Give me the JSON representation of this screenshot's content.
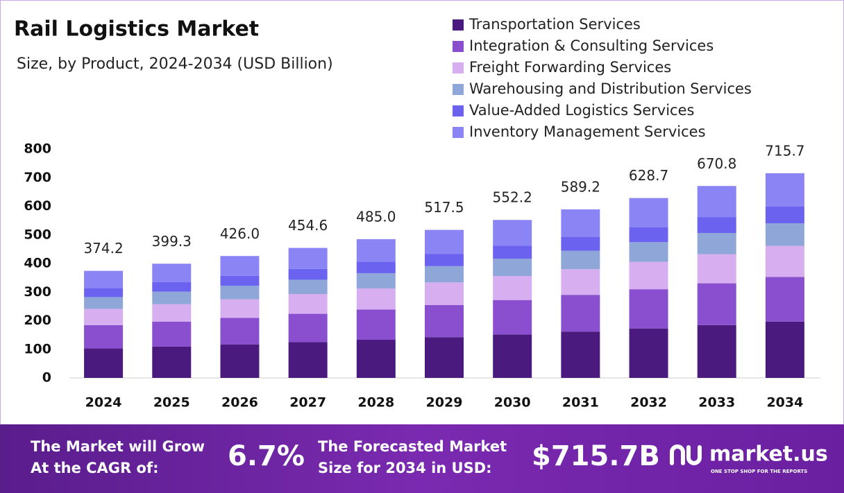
{
  "chart_data": {
    "type": "stacked_bar",
    "title": "Rail Logistics Market",
    "subtitle": "Size, by Product, 2024-2034 (USD Billion)",
    "categories": [
      "2024",
      "2025",
      "2026",
      "2027",
      "2028",
      "2029",
      "2030",
      "2031",
      "2032",
      "2033",
      "2034"
    ],
    "series": [
      {
        "name": "Transportation Services",
        "color": "#4a1a7e",
        "values": [
          102.9,
          109.8,
          117.2,
          125.0,
          133.4,
          142.3,
          151.9,
          162.0,
          172.9,
          184.5,
          196.8
        ]
      },
      {
        "name": "Integration & Consulting Services",
        "color": "#8a4fcf",
        "values": [
          81.6,
          87.0,
          92.9,
          99.1,
          105.7,
          112.8,
          120.4,
          128.4,
          137.1,
          146.2,
          156.0
        ]
      },
      {
        "name": "Freight Forwarding Services",
        "color": "#d7aef0",
        "values": [
          56.9,
          60.7,
          64.8,
          69.1,
          73.7,
          78.7,
          83.9,
          89.6,
          95.6,
          102.0,
          108.8
        ]
      },
      {
        "name": "Warehousing and Distribution Services",
        "color": "#8fa6d8",
        "values": [
          41.2,
          43.9,
          46.9,
          50.0,
          53.4,
          56.9,
          60.7,
          64.8,
          69.2,
          73.8,
          78.7
        ]
      },
      {
        "name": "Value-Added Logistics Services",
        "color": "#6b63f0",
        "values": [
          31.1,
          33.1,
          35.4,
          37.7,
          40.3,
          43.0,
          45.8,
          48.9,
          52.2,
          55.7,
          59.4
        ]
      },
      {
        "name": "Inventory Management Services",
        "color": "#8b84f5",
        "values": [
          60.6,
          64.7,
          69.0,
          73.6,
          78.6,
          83.8,
          89.5,
          95.5,
          101.8,
          108.7,
          115.9
        ]
      }
    ],
    "totals": [
      374.2,
      399.3,
      426.0,
      454.6,
      485.0,
      517.5,
      552.2,
      589.2,
      628.7,
      670.8,
      715.7
    ],
    "total_labels": [
      "374.2",
      "399.3",
      "426.0",
      "454.6",
      "485.0",
      "517.5",
      "552.2",
      "589.2",
      "628.7",
      "670.8",
      "715.7"
    ],
    "ylim": [
      0,
      800
    ],
    "yticks": [
      0,
      100,
      200,
      300,
      400,
      500,
      600,
      700,
      800
    ],
    "grid": false
  },
  "footer": {
    "cagr_text": [
      "The Market will Grow",
      "At the CAGR of:"
    ],
    "cagr": "6.7%",
    "size_text": [
      "The Forecasted Market",
      "Size for 2034 in USD:"
    ],
    "size": "$715.7B",
    "brand": "market.us",
    "tagline": "ONE STOP SHOP FOR THE REPORTS"
  }
}
